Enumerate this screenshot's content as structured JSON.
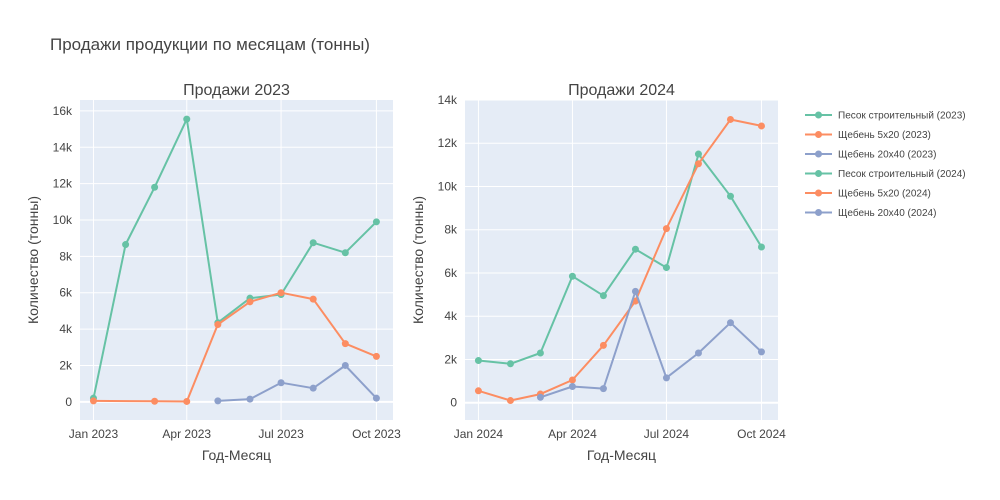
{
  "chart_data": {
    "type": "line",
    "title": "Продажи продукции по месяцам (тонны)",
    "colors": {
      "sand": "#66c2a5",
      "gravel520": "#fc8d62",
      "gravel2040": "#8da0cb",
      "plot_bg": "#e5ecf6",
      "grid": "#ffffff"
    },
    "legend_position": "right",
    "legend": [
      {
        "label": "Песок строительный (2023)",
        "color": "#66c2a5"
      },
      {
        "label": "Щебень 5х20 (2023)",
        "color": "#fc8d62"
      },
      {
        "label": "Щебень 20х40 (2023)",
        "color": "#8da0cb"
      },
      {
        "label": "Песок строительный (2024)",
        "color": "#66c2a5"
      },
      {
        "label": "Щебень 5х20 (2024)",
        "color": "#fc8d62"
      },
      {
        "label": "Щебень 20х40 (2024)",
        "color": "#8da0cb"
      }
    ],
    "panels": [
      {
        "title": "Продажи 2023",
        "xlabel": "Год-Месяц",
        "ylabel": "Количество (тонны)",
        "xlim": [
          "2022-12-19",
          "2023-10-17"
        ],
        "ylim": [
          -1000,
          16600
        ],
        "x_ticks": [
          {
            "date": "2023-01-01",
            "label": "Jan 2023"
          },
          {
            "date": "2023-04-01",
            "label": "Apr 2023"
          },
          {
            "date": "2023-07-01",
            "label": "Jul 2023"
          },
          {
            "date": "2023-10-01",
            "label": "Oct 2023"
          }
        ],
        "y_ticks": [
          {
            "value": 0,
            "label": "0"
          },
          {
            "value": 2000,
            "label": "2k"
          },
          {
            "value": 4000,
            "label": "4k"
          },
          {
            "value": 6000,
            "label": "6k"
          },
          {
            "value": 8000,
            "label": "8k"
          },
          {
            "value": 10000,
            "label": "10k"
          },
          {
            "value": 12000,
            "label": "12k"
          },
          {
            "value": 14000,
            "label": "14k"
          },
          {
            "value": 16000,
            "label": "16k"
          }
        ],
        "series": [
          {
            "name": "Песок строительный (2023)",
            "color": "#66c2a5",
            "x": [
              "2023-01-01",
              "2023-02-01",
              "2023-03-01",
              "2023-04-01",
              "2023-05-01",
              "2023-06-01",
              "2023-07-01",
              "2023-08-01",
              "2023-09-01",
              "2023-10-01"
            ],
            "y": [
              200,
              8650,
              11800,
              15550,
              4350,
              5700,
              5900,
              8750,
              8200,
              9900
            ]
          },
          {
            "name": "Щебень 5х20 (2023)",
            "color": "#fc8d62",
            "x": [
              "2023-01-01",
              "2023-03-01",
              "2023-04-01",
              "2023-05-01",
              "2023-06-01",
              "2023-07-01",
              "2023-08-01",
              "2023-09-01",
              "2023-10-01"
            ],
            "y": [
              50,
              30,
              20,
              4250,
              5500,
              6000,
              5650,
              3200,
              2500
            ]
          },
          {
            "name": "Щебень 20х40 (2023)",
            "color": "#8da0cb",
            "x": [
              "2023-05-01",
              "2023-06-01",
              "2023-07-01",
              "2023-08-01",
              "2023-09-01",
              "2023-10-01"
            ],
            "y": [
              50,
              150,
              1050,
              750,
              2000,
              200
            ]
          }
        ]
      },
      {
        "title": "Продажи 2024",
        "xlabel": "Год-Месяц",
        "ylabel": "Количество (тонны)",
        "xlim": [
          "2023-12-19",
          "2024-10-17"
        ],
        "ylim": [
          -800,
          14000
        ],
        "x_ticks": [
          {
            "date": "2024-01-01",
            "label": "Jan 2024"
          },
          {
            "date": "2024-04-01",
            "label": "Apr 2024"
          },
          {
            "date": "2024-07-01",
            "label": "Jul 2024"
          },
          {
            "date": "2024-10-01",
            "label": "Oct 2024"
          }
        ],
        "y_ticks": [
          {
            "value": 0,
            "label": "0"
          },
          {
            "value": 2000,
            "label": "2k"
          },
          {
            "value": 4000,
            "label": "4k"
          },
          {
            "value": 6000,
            "label": "6k"
          },
          {
            "value": 8000,
            "label": "8k"
          },
          {
            "value": 10000,
            "label": "10k"
          },
          {
            "value": 12000,
            "label": "12k"
          },
          {
            "value": 14000,
            "label": "14k"
          }
        ],
        "series": [
          {
            "name": "Песок строительный (2024)",
            "color": "#66c2a5",
            "x": [
              "2024-01-01",
              "2024-02-01",
              "2024-03-01",
              "2024-04-01",
              "2024-05-01",
              "2024-06-01",
              "2024-07-01",
              "2024-08-01",
              "2024-09-01",
              "2024-10-01"
            ],
            "y": [
              1950,
              1800,
              2300,
              5850,
              4950,
              7100,
              6250,
              11500,
              9550,
              7200
            ]
          },
          {
            "name": "Щебень 5х20 (2024)",
            "color": "#fc8d62",
            "x": [
              "2024-01-01",
              "2024-02-01",
              "2024-03-01",
              "2024-04-01",
              "2024-05-01",
              "2024-06-01",
              "2024-07-01",
              "2024-08-01",
              "2024-09-01",
              "2024-10-01"
            ],
            "y": [
              550,
              100,
              400,
              1050,
              2650,
              4700,
              8050,
              11050,
              13100,
              12800
            ]
          },
          {
            "name": "Щебень 20х40 (2024)",
            "color": "#8da0cb",
            "x": [
              "2024-03-01",
              "2024-04-01",
              "2024-05-01",
              "2024-06-01",
              "2024-07-01",
              "2024-08-01",
              "2024-09-01",
              "2024-10-01"
            ],
            "y": [
              250,
              750,
              650,
              5150,
              1150,
              2300,
              3700,
              2350
            ]
          }
        ]
      }
    ]
  }
}
